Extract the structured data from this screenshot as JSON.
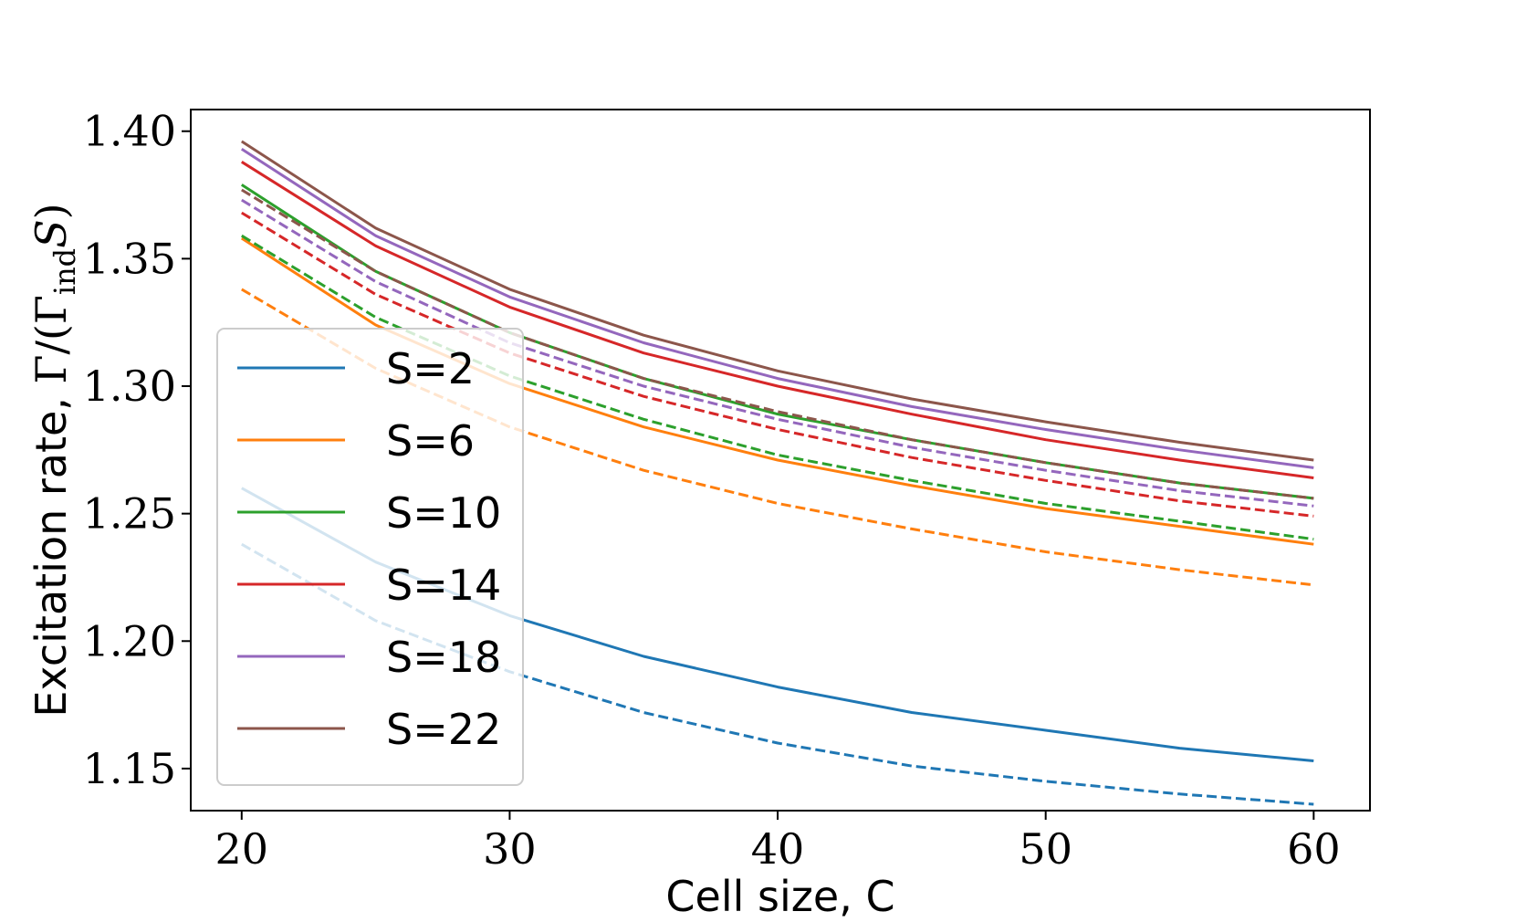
{
  "chart_data": {
    "type": "line",
    "title": "",
    "xlabel": "Cell size, C",
    "ylabel": {
      "prefix": "Excitation rate, ",
      "math_gamma": "Γ",
      "math_slash_paren": "/(Γ",
      "math_sub": "ind",
      "math_s": "S",
      "math_close": ")"
    },
    "xlim": [
      18.1,
      62.1
    ],
    "ylim": [
      1.1335,
      1.4085
    ],
    "xticks": [
      20,
      30,
      40,
      50,
      60
    ],
    "xtick_labels": [
      "20",
      "30",
      "40",
      "50",
      "60"
    ],
    "yticks": [
      1.15,
      1.2,
      1.25,
      1.3,
      1.35,
      1.4
    ],
    "ytick_labels": [
      "1.15",
      "1.20",
      "1.25",
      "1.30",
      "1.35",
      "1.40"
    ],
    "legend_position": "lower-left",
    "x": [
      20,
      25,
      30,
      35,
      40,
      45,
      50,
      55,
      60
    ],
    "series": [
      {
        "name": "S=2",
        "color": "#1f77b4",
        "solid": [
          1.26,
          1.231,
          1.21,
          1.194,
          1.182,
          1.172,
          1.165,
          1.158,
          1.153
        ],
        "dashed": [
          1.238,
          1.208,
          1.188,
          1.172,
          1.16,
          1.151,
          1.145,
          1.14,
          1.136
        ]
      },
      {
        "name": "S=6",
        "color": "#ff7f0e",
        "solid": [
          1.358,
          1.324,
          1.301,
          1.284,
          1.271,
          1.261,
          1.252,
          1.245,
          1.238
        ],
        "dashed": [
          1.338,
          1.307,
          1.284,
          1.267,
          1.254,
          1.244,
          1.235,
          1.228,
          1.222
        ]
      },
      {
        "name": "S=10",
        "color": "#2ca02c",
        "solid": [
          1.379,
          1.345,
          1.321,
          1.303,
          1.289,
          1.279,
          1.27,
          1.262,
          1.256
        ],
        "dashed": [
          1.359,
          1.327,
          1.304,
          1.287,
          1.273,
          1.263,
          1.254,
          1.247,
          1.24
        ]
      },
      {
        "name": "S=14",
        "color": "#d62728",
        "solid": [
          1.388,
          1.355,
          1.331,
          1.313,
          1.3,
          1.289,
          1.279,
          1.271,
          1.264
        ],
        "dashed": [
          1.368,
          1.336,
          1.313,
          1.296,
          1.283,
          1.272,
          1.263,
          1.255,
          1.249
        ]
      },
      {
        "name": "S=18",
        "color": "#9467bd",
        "solid": [
          1.393,
          1.359,
          1.335,
          1.317,
          1.303,
          1.292,
          1.283,
          1.275,
          1.268
        ],
        "dashed": [
          1.373,
          1.341,
          1.317,
          1.3,
          1.287,
          1.276,
          1.267,
          1.259,
          1.253
        ]
      },
      {
        "name": "S=22",
        "color": "#8c564b",
        "solid": [
          1.396,
          1.362,
          1.338,
          1.32,
          1.306,
          1.295,
          1.286,
          1.278,
          1.271
        ],
        "dashed": [
          1.377,
          1.345,
          1.321,
          1.303,
          1.29,
          1.279,
          1.27,
          1.262,
          1.256
        ]
      }
    ]
  }
}
